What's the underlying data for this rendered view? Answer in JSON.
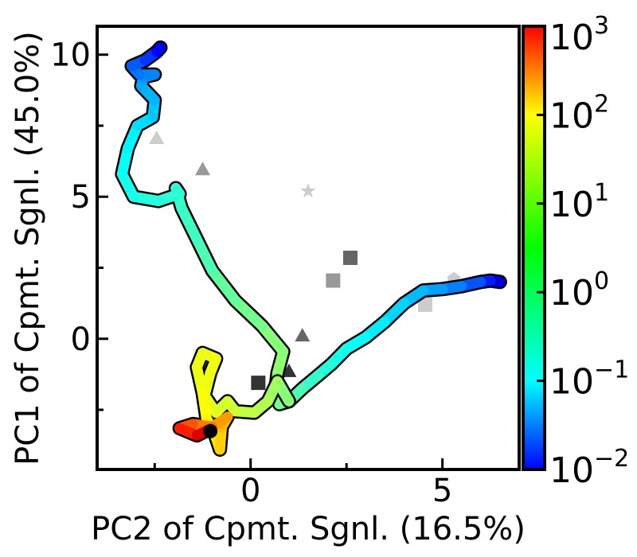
{
  "chart_data": {
    "type": "scatter",
    "xlabel": "PC2 of Cpmt. Sgnl. (16.5%)",
    "ylabel": "PC1 of Cpmt. Sgnl. (45.0%)",
    "xlim": [
      -4.0,
      7.0
    ],
    "ylim": [
      -4.6,
      11.0
    ],
    "x_ticks": [
      {
        "value": 0,
        "label": "0"
      },
      {
        "value": 5,
        "label": "5"
      }
    ],
    "y_ticks": [
      {
        "value": 0,
        "label": "0"
      },
      {
        "value": 5,
        "label": "5"
      },
      {
        "value": 10,
        "label": "10"
      }
    ],
    "colorbar": {
      "scale": "log",
      "range": [
        0.01,
        1000
      ],
      "colormap": "jet",
      "tick_labels": [
        {
          "value": 0.01,
          "base": "10",
          "exp": "−2"
        },
        {
          "value": 0.1,
          "base": "10",
          "exp": "−1"
        },
        {
          "value": 1,
          "base": "10",
          "exp": "0"
        },
        {
          "value": 10,
          "base": "10",
          "exp": "1"
        },
        {
          "value": 100,
          "base": "10",
          "exp": "2"
        },
        {
          "value": 1000,
          "base": "10",
          "exp": "3"
        }
      ]
    },
    "trajectory": [
      {
        "x": 6.5,
        "y": 2.0,
        "c": 0.02
      },
      {
        "x": 6.25,
        "y": 2.05,
        "c": 0.04
      },
      {
        "x": 6.0,
        "y": 2.0,
        "c": 0.08
      },
      {
        "x": 5.5,
        "y": 1.85,
        "c": 0.15
      },
      {
        "x": 5.0,
        "y": 1.75,
        "c": 0.22
      },
      {
        "x": 4.5,
        "y": 1.7,
        "c": 0.3
      },
      {
        "x": 4.0,
        "y": 1.25,
        "c": 0.4
      },
      {
        "x": 3.5,
        "y": 0.6,
        "c": 0.55
      },
      {
        "x": 3.0,
        "y": 0.05,
        "c": 0.7
      },
      {
        "x": 2.5,
        "y": -0.35,
        "c": 0.85
      },
      {
        "x": 2.1,
        "y": -0.9,
        "c": 1.0
      },
      {
        "x": 1.75,
        "y": -1.3,
        "c": 1.2
      },
      {
        "x": 1.35,
        "y": -1.75,
        "c": 1.5
      },
      {
        "x": 1.0,
        "y": -2.2,
        "c": 2.0
      },
      {
        "x": 0.75,
        "y": -2.3,
        "c": 2.5
      },
      {
        "x": 0.65,
        "y": -1.8,
        "c": 3.0
      },
      {
        "x": 0.7,
        "y": -1.2,
        "c": 3.5
      },
      {
        "x": 0.85,
        "y": -0.45,
        "c": 4.0
      },
      {
        "x": 0.3,
        "y": 0.45,
        "c": 3.0
      },
      {
        "x": -0.4,
        "y": 1.35,
        "c": 2.5
      },
      {
        "x": -1.0,
        "y": 2.4,
        "c": 2.0
      },
      {
        "x": -1.4,
        "y": 3.5,
        "c": 1.6
      },
      {
        "x": -1.8,
        "y": 4.6,
        "c": 1.4
      },
      {
        "x": -1.95,
        "y": 5.3,
        "c": 1.3
      },
      {
        "x": -1.85,
        "y": 5.1,
        "c": 1.25
      },
      {
        "x": -2.4,
        "y": 4.85,
        "c": 1.15
      },
      {
        "x": -3.05,
        "y": 5.0,
        "c": 1.0
      },
      {
        "x": -3.35,
        "y": 5.8,
        "c": 0.9
      },
      {
        "x": -3.2,
        "y": 6.7,
        "c": 0.75
      },
      {
        "x": -2.95,
        "y": 7.5,
        "c": 0.6
      },
      {
        "x": -2.55,
        "y": 7.8,
        "c": 0.45
      },
      {
        "x": -2.5,
        "y": 8.4,
        "c": 0.35
      },
      {
        "x": -2.85,
        "y": 8.9,
        "c": 0.3
      },
      {
        "x": -2.8,
        "y": 9.2,
        "c": 0.25
      },
      {
        "x": -2.5,
        "y": 9.3,
        "c": 0.2
      },
      {
        "x": -2.9,
        "y": 9.3,
        "c": 0.18
      },
      {
        "x": -3.1,
        "y": 9.6,
        "c": 0.14
      },
      {
        "x": -2.75,
        "y": 9.8,
        "c": 0.1
      },
      {
        "x": -2.45,
        "y": 10.1,
        "c": 0.06
      },
      {
        "x": -2.35,
        "y": 10.25,
        "c": 0.03
      }
    ],
    "tangle": [
      {
        "x": 1.0,
        "y": -2.2,
        "c": 3.0
      },
      {
        "x": 0.7,
        "y": -1.5,
        "c": 4.0
      },
      {
        "x": 0.45,
        "y": -2.2,
        "c": 5.0
      },
      {
        "x": 0.1,
        "y": -2.6,
        "c": 6.0
      },
      {
        "x": -0.4,
        "y": -2.55,
        "c": 7.0
      },
      {
        "x": -0.6,
        "y": -2.2,
        "c": 8.0
      },
      {
        "x": -0.9,
        "y": -2.6,
        "c": 9.0
      },
      {
        "x": -1.2,
        "y": -2.0,
        "c": 10.0
      },
      {
        "x": -1.05,
        "y": -1.2,
        "c": 11.0
      },
      {
        "x": -0.9,
        "y": -0.7,
        "c": 12.0
      },
      {
        "x": -1.25,
        "y": -0.5,
        "c": 11.0
      },
      {
        "x": -1.4,
        "y": -1.0,
        "c": 10.0
      },
      {
        "x": -1.25,
        "y": -1.9,
        "c": 12.0
      },
      {
        "x": -1.15,
        "y": -2.8,
        "c": 14.0
      },
      {
        "x": -0.95,
        "y": -3.3,
        "c": 16.0
      },
      {
        "x": -0.8,
        "y": -3.9,
        "c": 20.0
      },
      {
        "x": -0.75,
        "y": -3.1,
        "c": 25.0
      },
      {
        "x": -0.6,
        "y": -2.75,
        "c": 35.0
      },
      {
        "x": -1.0,
        "y": -3.1,
        "c": 50.0
      },
      {
        "x": -1.5,
        "y": -3.0,
        "c": 70.0
      },
      {
        "x": -1.85,
        "y": -3.15,
        "c": 120.0
      },
      {
        "x": -1.4,
        "y": -3.4,
        "c": 250.0
      },
      {
        "x": -1.1,
        "y": -3.2,
        "c": 500.0
      }
    ],
    "endpoint": {
      "x": -1.05,
      "y": -3.25
    },
    "markers": [
      {
        "shape": "triangle",
        "x": -2.45,
        "y": 7.05,
        "color": "#cccccc"
      },
      {
        "shape": "triangle",
        "x": -1.25,
        "y": 5.95,
        "color": "#999999"
      },
      {
        "shape": "star",
        "x": 1.5,
        "y": 5.2,
        "color": "#cccccc"
      },
      {
        "shape": "square",
        "x": 2.6,
        "y": 2.85,
        "color": "#666666"
      },
      {
        "shape": "square",
        "x": 2.15,
        "y": 2.05,
        "color": "#999999"
      },
      {
        "shape": "pentagon",
        "x": 5.3,
        "y": 2.1,
        "color": "#cccccc"
      },
      {
        "shape": "square",
        "x": 4.55,
        "y": 1.2,
        "color": "#cccccc"
      },
      {
        "shape": "triangle",
        "x": 1.35,
        "y": 0.1,
        "color": "#666666"
      },
      {
        "shape": "triangle",
        "x": 1.0,
        "y": -1.15,
        "color": "#333333"
      },
      {
        "shape": "square",
        "x": 0.2,
        "y": -1.55,
        "color": "#333333"
      }
    ]
  }
}
